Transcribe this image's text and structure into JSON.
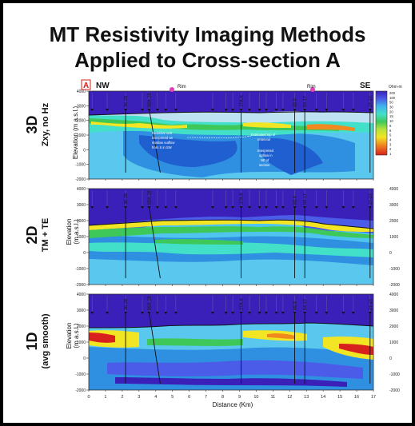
{
  "title": {
    "line1": "MT Resistivity Imaging Methods",
    "line2": "Applied to Cross-section A"
  },
  "rows": [
    {
      "label": "3D",
      "sublabel": "Zxy, no Hz",
      "ylabel": "Elevation (m a.s.l.)"
    },
    {
      "label": "2D",
      "sublabel": "TM + TE",
      "ylabel": "Elevation",
      "ylabel2": "(m a.s.l.)"
    },
    {
      "label": "1D",
      "sublabel": "(avg smooth)",
      "ylabel": "Elevation",
      "ylabel2": "(m a.s.l.)"
    }
  ],
  "orientation": {
    "left": "NW",
    "right": "SE",
    "badge": "A"
  },
  "rim_label": "Rim",
  "units": "Ohm-m",
  "y_ticks": [
    "4000",
    "3000",
    "2000",
    "1000",
    "0",
    "-1000",
    "-2000"
  ],
  "x_ticks": [
    "0",
    "1",
    "2",
    "3",
    "4",
    "5",
    "6",
    "7",
    "8",
    "9",
    "10",
    "11",
    "12",
    "13",
    "14",
    "15",
    "16",
    "17"
  ],
  "xlabel": "Distance (Km)",
  "wells": [
    "36-28",
    "68A-28",
    "37A-6",
    "68-8",
    "64-17",
    "27-27"
  ],
  "annotations": {
    "a1": "Resistive unit",
    "a2": "Interpreted as",
    "a3": "shallow outflow",
    "a4": "from S in SW",
    "a5": "Estimated top of",
    "a6": "reservoir",
    "a7": "Interpreted",
    "a8": "upflow in",
    "a9": "NE of",
    "a10": "section"
  },
  "colorbar_values": [
    "200",
    "100",
    "50",
    "30",
    "20",
    "15",
    "10",
    "8",
    "6",
    "5",
    "4",
    "3",
    "2",
    "1"
  ]
}
